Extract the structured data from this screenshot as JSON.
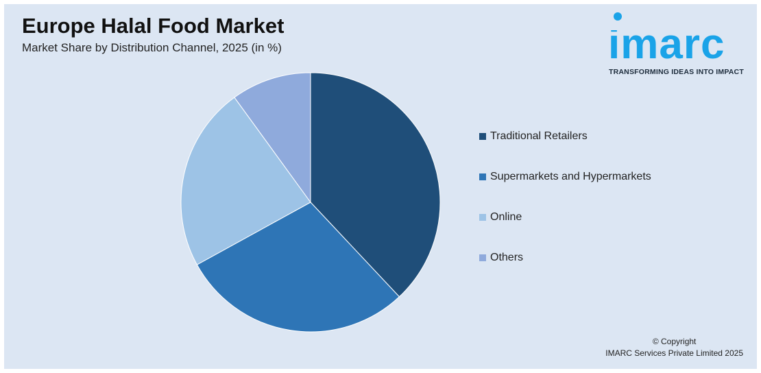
{
  "header": {
    "title": "Europe Halal Food Market",
    "subtitle": "Market Share by Distribution Channel, 2025 (in %)"
  },
  "logo": {
    "text": "imarc",
    "tagline": "TRANSFORMING IDEAS INTO IMPACT",
    "color": "#1aa3e8"
  },
  "chart_data": {
    "type": "pie",
    "categories": [
      "Traditional Retailers",
      "Supermarkets and Hypermarkets",
      "Online",
      "Others"
    ],
    "values": [
      38,
      29,
      23,
      10
    ],
    "colors": [
      "#1f4e79",
      "#2e75b6",
      "#9dc3e6",
      "#8faadc"
    ],
    "title": "Europe Halal Food Market",
    "subtitle": "Market Share by Distribution Channel, 2025 (in %)",
    "legend_position": "right",
    "start_angle": "12 o'clock",
    "direction": "clockwise"
  },
  "legend": {
    "items": [
      {
        "label": "Traditional Retailers",
        "color": "#1f4e79"
      },
      {
        "label": "Supermarkets and Hypermarkets",
        "color": "#2e75b6"
      },
      {
        "label": "Online",
        "color": "#9dc3e6"
      },
      {
        "label": "Others",
        "color": "#8faadc"
      }
    ]
  },
  "footer": {
    "copyright_line1": "© Copyright",
    "copyright_line2": "IMARC Services Private Limited 2025"
  }
}
